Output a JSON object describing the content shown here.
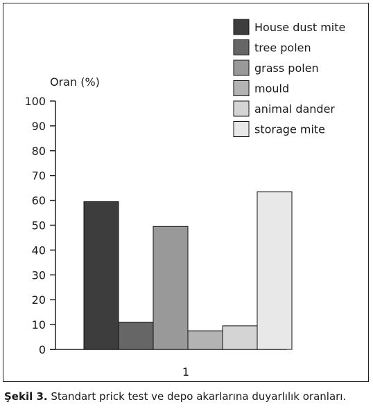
{
  "chart_data": {
    "type": "bar",
    "ylabel": "Oran (%)",
    "ylim": [
      0,
      100
    ],
    "yticks": [
      0,
      10,
      20,
      30,
      40,
      50,
      60,
      70,
      80,
      90,
      100
    ],
    "categories": [
      "1"
    ],
    "series": [
      {
        "name": "House dust mite",
        "values": [
          59.5
        ],
        "color": "#3d3d3d"
      },
      {
        "name": "tree polen",
        "values": [
          11
        ],
        "color": "#666666"
      },
      {
        "name": "grass polen",
        "values": [
          49.5
        ],
        "color": "#999999"
      },
      {
        "name": "mould",
        "values": [
          7.5
        ],
        "color": "#b3b3b3"
      },
      {
        "name": "animal dander",
        "values": [
          9.5
        ],
        "color": "#d4d4d4"
      },
      {
        "name": "storage mite",
        "values": [
          63.5
        ],
        "color": "#e8e8e8"
      }
    ],
    "legend": "top-right",
    "grid": false
  },
  "caption": {
    "label": "Şekil 3.",
    "text": " Standart prick test ve depo akarlarına duyarlılık oranları."
  }
}
